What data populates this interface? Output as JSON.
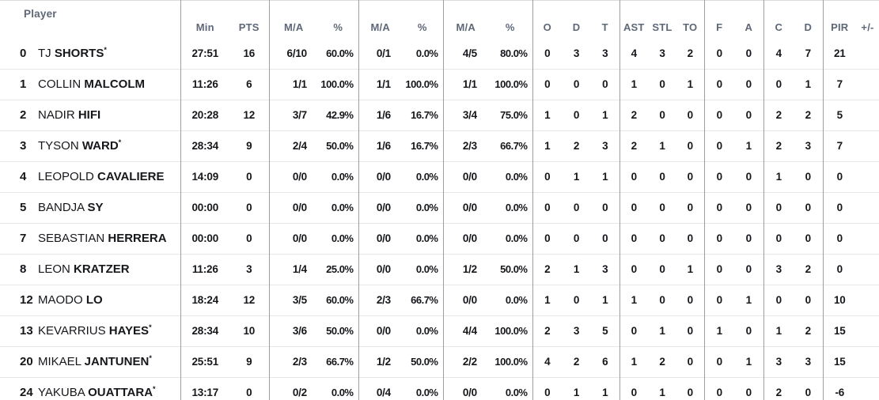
{
  "table": {
    "header": {
      "player": "Player",
      "stat_cols": [
        "Min",
        "PTS",
        "M/A",
        "%",
        "M/A",
        "%",
        "M/A",
        "%",
        "O",
        "D",
        "T",
        "AST",
        "STL",
        "TO",
        "F",
        "A",
        "C",
        "D",
        "PIR",
        "+/-"
      ]
    },
    "starter_marker": "*",
    "rows": [
      {
        "number": "0",
        "first": "TJ",
        "last": "SHORTS",
        "starter": true,
        "stats": [
          "27:51",
          "16",
          "6/10",
          "60.0%",
          "0/1",
          "0.0%",
          "4/5",
          "80.0%",
          "0",
          "3",
          "3",
          "4",
          "3",
          "2",
          "0",
          "0",
          "4",
          "7",
          "21",
          ""
        ]
      },
      {
        "number": "1",
        "first": "COLLIN",
        "last": "MALCOLM",
        "starter": false,
        "stats": [
          "11:26",
          "6",
          "1/1",
          "100.0%",
          "1/1",
          "100.0%",
          "1/1",
          "100.0%",
          "0",
          "0",
          "0",
          "1",
          "0",
          "1",
          "0",
          "0",
          "0",
          "1",
          "7",
          ""
        ]
      },
      {
        "number": "2",
        "first": "NADIR",
        "last": "HIFI",
        "starter": false,
        "stats": [
          "20:28",
          "12",
          "3/7",
          "42.9%",
          "1/6",
          "16.7%",
          "3/4",
          "75.0%",
          "1",
          "0",
          "1",
          "2",
          "0",
          "0",
          "0",
          "0",
          "2",
          "2",
          "5",
          ""
        ]
      },
      {
        "number": "3",
        "first": "TYSON",
        "last": "WARD",
        "starter": true,
        "stats": [
          "28:34",
          "9",
          "2/4",
          "50.0%",
          "1/6",
          "16.7%",
          "2/3",
          "66.7%",
          "1",
          "2",
          "3",
          "2",
          "1",
          "0",
          "0",
          "1",
          "2",
          "3",
          "7",
          ""
        ]
      },
      {
        "number": "4",
        "first": "LEOPOLD",
        "last": "CAVALIERE",
        "starter": false,
        "stats": [
          "14:09",
          "0",
          "0/0",
          "0.0%",
          "0/0",
          "0.0%",
          "0/0",
          "0.0%",
          "0",
          "1",
          "1",
          "0",
          "0",
          "0",
          "0",
          "0",
          "1",
          "0",
          "0",
          ""
        ]
      },
      {
        "number": "5",
        "first": "BANDJA",
        "last": "SY",
        "starter": false,
        "stats": [
          "00:00",
          "0",
          "0/0",
          "0.0%",
          "0/0",
          "0.0%",
          "0/0",
          "0.0%",
          "0",
          "0",
          "0",
          "0",
          "0",
          "0",
          "0",
          "0",
          "0",
          "0",
          "0",
          ""
        ]
      },
      {
        "number": "7",
        "first": "SEBASTIAN",
        "last": "HERRERA",
        "starter": false,
        "stats": [
          "00:00",
          "0",
          "0/0",
          "0.0%",
          "0/0",
          "0.0%",
          "0/0",
          "0.0%",
          "0",
          "0",
          "0",
          "0",
          "0",
          "0",
          "0",
          "0",
          "0",
          "0",
          "0",
          ""
        ]
      },
      {
        "number": "8",
        "first": "LEON",
        "last": "KRATZER",
        "starter": false,
        "stats": [
          "11:26",
          "3",
          "1/4",
          "25.0%",
          "0/0",
          "0.0%",
          "1/2",
          "50.0%",
          "2",
          "1",
          "3",
          "0",
          "0",
          "1",
          "0",
          "0",
          "3",
          "2",
          "0",
          ""
        ]
      },
      {
        "number": "12",
        "first": "MAODO",
        "last": "LO",
        "starter": false,
        "stats": [
          "18:24",
          "12",
          "3/5",
          "60.0%",
          "2/3",
          "66.7%",
          "0/0",
          "0.0%",
          "1",
          "0",
          "1",
          "1",
          "0",
          "0",
          "0",
          "1",
          "0",
          "0",
          "10",
          ""
        ]
      },
      {
        "number": "13",
        "first": "KEVARRIUS",
        "last": "HAYES",
        "starter": true,
        "stats": [
          "28:34",
          "10",
          "3/6",
          "50.0%",
          "0/0",
          "0.0%",
          "4/4",
          "100.0%",
          "2",
          "3",
          "5",
          "0",
          "1",
          "0",
          "1",
          "0",
          "1",
          "2",
          "15",
          ""
        ]
      },
      {
        "number": "20",
        "first": "MIKAEL",
        "last": "JANTUNEN",
        "starter": true,
        "stats": [
          "25:51",
          "9",
          "2/3",
          "66.7%",
          "1/2",
          "50.0%",
          "2/2",
          "100.0%",
          "4",
          "2",
          "6",
          "1",
          "2",
          "0",
          "0",
          "1",
          "3",
          "3",
          "15",
          ""
        ]
      },
      {
        "number": "24",
        "first": "YAKUBA",
        "last": "OUATTARA",
        "starter": true,
        "stats": [
          "13:17",
          "0",
          "0/2",
          "0.0%",
          "0/4",
          "0.0%",
          "0/0",
          "0.0%",
          "0",
          "1",
          "1",
          "0",
          "1",
          "0",
          "0",
          "0",
          "2",
          "0",
          "-6",
          ""
        ]
      }
    ]
  },
  "colors": {
    "header_text": "#5f6877",
    "body_text": "#15171b",
    "group_divider": "#9e9e9e",
    "row_divider": "#e6e6e6"
  }
}
